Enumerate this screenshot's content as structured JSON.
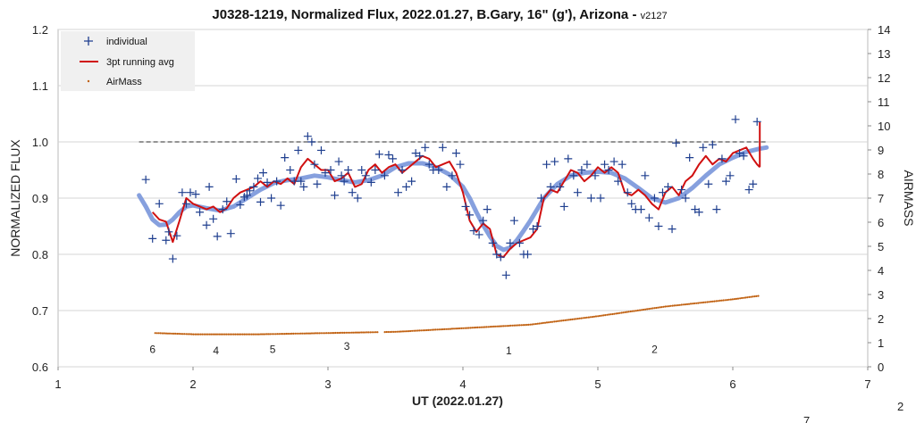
{
  "chart_data": {
    "type": "scatter",
    "title": "J0328-1219, Normalized Flux, 2022.01.27, B.Gary, 16\" (g'), Arizona - ",
    "title_suffix": "v2127",
    "xlabel": "UT (2022.01.27)",
    "ylabel": "NORMALIZED FLUX",
    "y2label": "AIRMASS",
    "xlim": [
      1,
      7
    ],
    "ylim": [
      0.6,
      1.2
    ],
    "y2lim": [
      0,
      14
    ],
    "x_ticks": [
      "1",
      "2",
      "3",
      "4",
      "5",
      "6",
      "7"
    ],
    "y_ticks": [
      "0.6",
      "0.7",
      "0.8",
      "0.9",
      "1.0",
      "1.1",
      "1.2"
    ],
    "y2_ticks": [
      "0",
      "1",
      "2",
      "3",
      "4",
      "5",
      "6",
      "7",
      "8",
      "9",
      "10",
      "11",
      "12",
      "13",
      "14"
    ],
    "grid": true,
    "legend_position": "top-left",
    "legend": [
      "individual",
      "3pt running avg",
      "AirMass"
    ],
    "colors": {
      "individual": "#1f3f8f",
      "running_avg": "#d01010",
      "airmass": "#c06010",
      "model": "#7f9bdc",
      "reference": "#707070"
    },
    "reference_line": {
      "y": 1.0,
      "x": [
        1.6,
        6.25
      ]
    },
    "series": [
      {
        "name": "individual",
        "x": [
          1.65,
          1.7,
          1.75,
          1.8,
          1.82,
          1.85,
          1.88,
          1.92,
          1.95,
          1.98,
          2.02,
          2.05,
          2.1,
          2.12,
          2.15,
          2.18,
          2.22,
          2.25,
          2.28,
          2.32,
          2.35,
          2.38,
          2.4,
          2.42,
          2.45,
          2.48,
          2.5,
          2.52,
          2.55,
          2.58,
          2.62,
          2.65,
          2.68,
          2.72,
          2.75,
          2.78,
          2.8,
          2.82,
          2.85,
          2.88,
          2.9,
          2.92,
          2.95,
          2.98,
          3.02,
          3.05,
          3.08,
          3.1,
          3.12,
          3.15,
          3.18,
          3.22,
          3.25,
          3.28,
          3.32,
          3.35,
          3.38,
          3.42,
          3.45,
          3.48,
          3.52,
          3.55,
          3.58,
          3.62,
          3.65,
          3.68,
          3.72,
          3.75,
          3.78,
          3.82,
          3.85,
          3.88,
          3.92,
          3.95,
          3.98,
          4.02,
          4.05,
          4.08,
          4.12,
          4.15,
          4.18,
          4.22,
          4.25,
          4.28,
          4.32,
          4.35,
          4.38,
          4.42,
          4.45,
          4.48,
          4.52,
          4.55,
          4.58,
          4.62,
          4.65,
          4.68,
          4.72,
          4.75,
          4.78,
          4.82,
          4.85,
          4.88,
          4.92,
          4.95,
          4.98,
          5.02,
          5.05,
          5.08,
          5.12,
          5.15,
          5.18,
          5.22,
          5.25,
          5.28,
          5.32,
          5.35,
          5.38,
          5.42,
          5.45,
          5.48,
          5.52,
          5.55,
          5.58,
          5.62,
          5.65,
          5.68,
          5.72,
          5.75,
          5.78,
          5.82,
          5.85,
          5.88,
          5.92,
          5.95,
          5.98,
          6.02,
          6.05,
          6.08,
          6.12,
          6.15,
          6.18
        ],
        "y": [
          0.933,
          0.828,
          0.89,
          0.825,
          0.84,
          0.792,
          0.833,
          0.91,
          0.89,
          0.91,
          0.907,
          0.875,
          0.852,
          0.92,
          0.863,
          0.832,
          0.88,
          0.894,
          0.837,
          0.934,
          0.888,
          0.902,
          0.905,
          0.913,
          0.92,
          0.935,
          0.893,
          0.945,
          0.928,
          0.9,
          0.93,
          0.887,
          0.972,
          0.95,
          0.93,
          0.985,
          0.93,
          0.92,
          1.01,
          1.0,
          0.96,
          0.925,
          0.985,
          0.945,
          0.95,
          0.905,
          0.965,
          0.94,
          0.93,
          0.95,
          0.91,
          0.9,
          0.95,
          0.94,
          0.928,
          0.95,
          0.978,
          0.94,
          0.977,
          0.97,
          0.91,
          0.95,
          0.92,
          0.93,
          0.98,
          0.975,
          0.99,
          0.96,
          0.95,
          0.95,
          0.99,
          0.92,
          0.94,
          0.98,
          0.96,
          0.885,
          0.87,
          0.842,
          0.835,
          0.86,
          0.88,
          0.82,
          0.8,
          0.795,
          0.763,
          0.82,
          0.86,
          0.82,
          0.8,
          0.8,
          0.845,
          0.85,
          0.9,
          0.96,
          0.92,
          0.965,
          0.92,
          0.885,
          0.97,
          0.94,
          0.91,
          0.95,
          0.96,
          0.9,
          0.94,
          0.9,
          0.96,
          0.95,
          0.965,
          0.93,
          0.96,
          0.91,
          0.89,
          0.88,
          0.88,
          0.94,
          0.865,
          0.9,
          0.85,
          0.91,
          0.92,
          0.845,
          0.998,
          0.915,
          0.9,
          0.972,
          0.88,
          0.875,
          0.99,
          0.925,
          0.995,
          0.88,
          0.97,
          0.93,
          0.94,
          1.04,
          0.98,
          0.975,
          0.915,
          0.925,
          1.036
        ]
      },
      {
        "name": "3pt running avg",
        "x": [
          1.7,
          1.75,
          1.8,
          1.85,
          1.9,
          1.95,
          2.0,
          2.05,
          2.1,
          2.15,
          2.2,
          2.25,
          2.3,
          2.35,
          2.4,
          2.45,
          2.5,
          2.55,
          2.6,
          2.65,
          2.7,
          2.75,
          2.8,
          2.85,
          2.9,
          2.95,
          3.0,
          3.05,
          3.1,
          3.15,
          3.2,
          3.25,
          3.3,
          3.35,
          3.4,
          3.45,
          3.5,
          3.55,
          3.6,
          3.65,
          3.7,
          3.75,
          3.8,
          3.85,
          3.9,
          3.95,
          4.0,
          4.05,
          4.1,
          4.15,
          4.2,
          4.25,
          4.3,
          4.35,
          4.4,
          4.45,
          4.5,
          4.55,
          4.6,
          4.65,
          4.7,
          4.75,
          4.8,
          4.85,
          4.9,
          4.95,
          5.0,
          5.05,
          5.1,
          5.15,
          5.2,
          5.25,
          5.3,
          5.35,
          5.4,
          5.45,
          5.5,
          5.55,
          5.6,
          5.65,
          5.7,
          5.75,
          5.8,
          5.85,
          5.9,
          5.95,
          6.0,
          6.05,
          6.1,
          6.15,
          6.18,
          6.2
        ],
        "y": [
          0.875,
          0.862,
          0.858,
          0.822,
          0.86,
          0.9,
          0.89,
          0.885,
          0.88,
          0.885,
          0.875,
          0.882,
          0.9,
          0.91,
          0.915,
          0.92,
          0.93,
          0.92,
          0.93,
          0.925,
          0.935,
          0.925,
          0.955,
          0.97,
          0.96,
          0.95,
          0.95,
          0.93,
          0.935,
          0.945,
          0.92,
          0.925,
          0.95,
          0.96,
          0.945,
          0.955,
          0.96,
          0.945,
          0.955,
          0.965,
          0.975,
          0.97,
          0.955,
          0.96,
          0.965,
          0.945,
          0.91,
          0.86,
          0.84,
          0.855,
          0.845,
          0.8,
          0.795,
          0.81,
          0.82,
          0.825,
          0.83,
          0.845,
          0.9,
          0.915,
          0.91,
          0.93,
          0.95,
          0.945,
          0.93,
          0.94,
          0.955,
          0.945,
          0.955,
          0.945,
          0.91,
          0.905,
          0.915,
          0.905,
          0.89,
          0.88,
          0.91,
          0.92,
          0.905,
          0.93,
          0.94,
          0.96,
          0.975,
          0.96,
          0.97,
          0.965,
          0.98,
          0.985,
          0.99,
          0.97,
          0.96,
          0.955
        ]
      },
      {
        "name": "model",
        "x": [
          1.6,
          1.65,
          1.7,
          1.75,
          1.8,
          1.85,
          1.9,
          1.95,
          2.0,
          2.1,
          2.2,
          2.3,
          2.4,
          2.5,
          2.6,
          2.7,
          2.8,
          2.9,
          3.0,
          3.1,
          3.2,
          3.3,
          3.4,
          3.5,
          3.6,
          3.7,
          3.8,
          3.9,
          4.0,
          4.05,
          4.1,
          4.15,
          4.2,
          4.25,
          4.3,
          4.35,
          4.4,
          4.45,
          4.5,
          4.55,
          4.6,
          4.7,
          4.8,
          4.9,
          5.0,
          5.1,
          5.2,
          5.3,
          5.4,
          5.5,
          5.6,
          5.7,
          5.8,
          5.9,
          6.0,
          6.1,
          6.2,
          6.25
        ],
        "y": [
          0.905,
          0.885,
          0.862,
          0.852,
          0.853,
          0.862,
          0.875,
          0.885,
          0.887,
          0.882,
          0.878,
          0.885,
          0.9,
          0.915,
          0.927,
          0.932,
          0.935,
          0.94,
          0.937,
          0.932,
          0.928,
          0.932,
          0.94,
          0.955,
          0.962,
          0.962,
          0.955,
          0.942,
          0.92,
          0.9,
          0.875,
          0.852,
          0.832,
          0.815,
          0.808,
          0.812,
          0.825,
          0.842,
          0.86,
          0.88,
          0.9,
          0.925,
          0.94,
          0.945,
          0.947,
          0.945,
          0.935,
          0.918,
          0.9,
          0.892,
          0.9,
          0.918,
          0.94,
          0.96,
          0.972,
          0.982,
          0.988,
          0.99
        ]
      },
      {
        "name": "AirMass",
        "x_range": [
          1.72,
          6.2
        ],
        "points": [
          [
            1.72,
            1.4
          ],
          [
            2.0,
            1.35
          ],
          [
            2.5,
            1.35
          ],
          [
            3.0,
            1.4
          ],
          [
            3.5,
            1.45
          ],
          [
            4.0,
            1.6
          ],
          [
            4.5,
            1.75
          ],
          [
            5.0,
            2.1
          ],
          [
            5.5,
            2.5
          ],
          [
            6.0,
            2.8
          ],
          [
            6.2,
            2.95
          ]
        ]
      }
    ],
    "annotations": [
      {
        "text": "6",
        "x": 1.7,
        "y": 0.625
      },
      {
        "text": "4",
        "x": 2.17,
        "y": 0.622
      },
      {
        "text": "5",
        "x": 2.59,
        "y": 0.625
      },
      {
        "text": "3",
        "x": 3.14,
        "y": 0.63
      },
      {
        "text": "1",
        "x": 4.34,
        "y": 0.622
      },
      {
        "text": "2",
        "x": 5.42,
        "y": 0.625
      }
    ],
    "footnotes": [
      {
        "text": "2"
      },
      {
        "text": "7"
      }
    ]
  }
}
